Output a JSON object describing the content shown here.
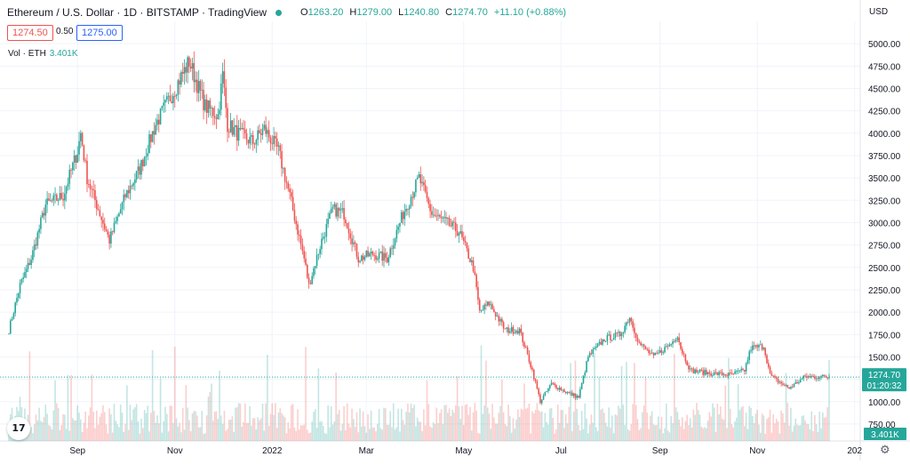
{
  "header": {
    "title": "Ethereum / U.S. Dollar · 1D · BITSTAMP · TradingView",
    "ohlc": {
      "o_label": "O",
      "o": "1263.20",
      "h_label": "H",
      "h": "1279.00",
      "l_label": "L",
      "l": "1240.80",
      "c_label": "C",
      "c": "1274.70",
      "change": "+11.10 (+0.88%)"
    },
    "sell_price": "1274.50",
    "spread": "0.50",
    "buy_price": "1275.00",
    "volume_label": "Vol · ETH",
    "volume_value": "3.401K",
    "currency": "USD"
  },
  "colors": {
    "up": "#26a69a",
    "down": "#ef5350",
    "grid": "#f0f3fa",
    "axis_text": "#131722",
    "last_price_bg": "#26a69a"
  },
  "icons": [
    "tradingview-logo-icon",
    "gear-icon"
  ],
  "chart_data": {
    "type": "candlestick",
    "title": "Ethereum / U.S. Dollar · 1D · BITSTAMP",
    "x_range": [
      "2021-07-20",
      "2022-12-16"
    ],
    "y_range": [
      620,
      5250
    ],
    "y_ticks": [
      "5000.00",
      "4750.00",
      "4500.00",
      "4250.00",
      "4000.00",
      "3750.00",
      "3500.00",
      "3250.00",
      "3000.00",
      "2750.00",
      "2500.00",
      "2250.00",
      "2000.00",
      "1750.00",
      "1500.00",
      "1250.00",
      "1000.00",
      "750.00"
    ],
    "x_ticks": [
      {
        "label": "Sep",
        "date": "2021-09-01"
      },
      {
        "label": "Nov",
        "date": "2021-11-01"
      },
      {
        "label": "2022",
        "date": "2022-01-01"
      },
      {
        "label": "Mar",
        "date": "2022-03-01"
      },
      {
        "label": "May",
        "date": "2022-05-01"
      },
      {
        "label": "Jul",
        "date": "2022-07-01"
      },
      {
        "label": "Sep",
        "date": "2022-09-01"
      },
      {
        "label": "Nov",
        "date": "2022-11-01"
      },
      {
        "label": "202",
        "date": "2023-01-01"
      }
    ],
    "last_price": "1274.70",
    "countdown": "01:20:32",
    "last_volume": "3.401K",
    "grid": true,
    "close_path": [
      {
        "date": "2021-07-20",
        "close": 1800
      },
      {
        "date": "2021-07-27",
        "close": 2300
      },
      {
        "date": "2021-08-03",
        "close": 2600
      },
      {
        "date": "2021-08-12",
        "close": 3200
      },
      {
        "date": "2021-08-23",
        "close": 3300
      },
      {
        "date": "2021-09-01",
        "close": 3800
      },
      {
        "date": "2021-09-03",
        "close": 4000
      },
      {
        "date": "2021-09-07",
        "close": 3500
      },
      {
        "date": "2021-09-21",
        "close": 2800
      },
      {
        "date": "2021-10-01",
        "close": 3300
      },
      {
        "date": "2021-10-10",
        "close": 3600
      },
      {
        "date": "2021-10-20",
        "close": 4100
      },
      {
        "date": "2021-10-29",
        "close": 4400
      },
      {
        "date": "2021-11-10",
        "close": 4800
      },
      {
        "date": "2021-11-20",
        "close": 4300
      },
      {
        "date": "2021-11-28",
        "close": 4200
      },
      {
        "date": "2021-12-01",
        "close": 4650
      },
      {
        "date": "2021-12-04",
        "close": 4100
      },
      {
        "date": "2021-12-10",
        "close": 4000
      },
      {
        "date": "2021-12-20",
        "close": 3900
      },
      {
        "date": "2021-12-27",
        "close": 4050
      },
      {
        "date": "2022-01-05",
        "close": 3800
      },
      {
        "date": "2022-01-12",
        "close": 3300
      },
      {
        "date": "2022-01-21",
        "close": 2600
      },
      {
        "date": "2022-01-24",
        "close": 2300
      },
      {
        "date": "2022-02-01",
        "close": 2800
      },
      {
        "date": "2022-02-08",
        "close": 3150
      },
      {
        "date": "2022-02-15",
        "close": 3100
      },
      {
        "date": "2022-02-24",
        "close": 2600
      },
      {
        "date": "2022-03-05",
        "close": 2650
      },
      {
        "date": "2022-03-14",
        "close": 2600
      },
      {
        "date": "2022-03-24",
        "close": 3100
      },
      {
        "date": "2022-04-03",
        "close": 3500
      },
      {
        "date": "2022-04-11",
        "close": 3100
      },
      {
        "date": "2022-04-20",
        "close": 3000
      },
      {
        "date": "2022-04-28",
        "close": 2900
      },
      {
        "date": "2022-05-07",
        "close": 2500
      },
      {
        "date": "2022-05-11",
        "close": 2000
      },
      {
        "date": "2022-05-17",
        "close": 2100
      },
      {
        "date": "2022-05-27",
        "close": 1800
      },
      {
        "date": "2022-06-05",
        "close": 1800
      },
      {
        "date": "2022-06-13",
        "close": 1350
      },
      {
        "date": "2022-06-18",
        "close": 1000
      },
      {
        "date": "2022-06-25",
        "close": 1200
      },
      {
        "date": "2022-07-05",
        "close": 1100
      },
      {
        "date": "2022-07-12",
        "close": 1050
      },
      {
        "date": "2022-07-18",
        "close": 1500
      },
      {
        "date": "2022-07-28",
        "close": 1700
      },
      {
        "date": "2022-08-07",
        "close": 1750
      },
      {
        "date": "2022-08-13",
        "close": 1950
      },
      {
        "date": "2022-08-19",
        "close": 1650
      },
      {
        "date": "2022-08-28",
        "close": 1500
      },
      {
        "date": "2022-09-08",
        "close": 1650
      },
      {
        "date": "2022-09-12",
        "close": 1750
      },
      {
        "date": "2022-09-14",
        "close": 1600
      },
      {
        "date": "2022-09-20",
        "close": 1350
      },
      {
        "date": "2022-10-01",
        "close": 1320
      },
      {
        "date": "2022-10-15",
        "close": 1300
      },
      {
        "date": "2022-10-24",
        "close": 1350
      },
      {
        "date": "2022-10-28",
        "close": 1600
      },
      {
        "date": "2022-11-05",
        "close": 1620
      },
      {
        "date": "2022-11-09",
        "close": 1300
      },
      {
        "date": "2022-11-12",
        "close": 1250
      },
      {
        "date": "2022-11-21",
        "close": 1150
      },
      {
        "date": "2022-12-01",
        "close": 1280
      },
      {
        "date": "2022-12-16",
        "close": 1274.7
      }
    ]
  }
}
